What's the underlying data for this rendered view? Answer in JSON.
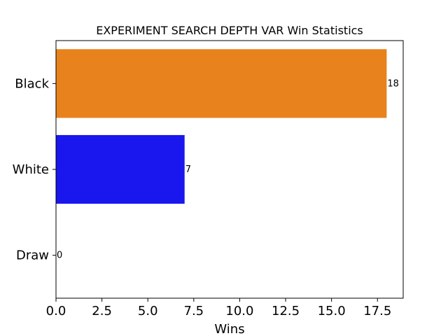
{
  "chart_data": {
    "type": "bar",
    "orientation": "horizontal",
    "title": "EXPERIMENT SEARCH DEPTH VAR Win Statistics",
    "xlabel": "Wins",
    "ylabel": "",
    "categories": [
      "Black",
      "White",
      "Draw"
    ],
    "values": [
      18,
      7,
      0
    ],
    "data_labels": [
      "18",
      "7",
      "0"
    ],
    "colors": [
      "#e8821c",
      "#1a16ee",
      "#ffffff"
    ],
    "xlim": [
      0,
      18.9
    ],
    "xticks": [
      0,
      2.5,
      5,
      7.5,
      10,
      12.5,
      15,
      17.5
    ],
    "xtick_labels": [
      "0.0",
      "2.5",
      "5.0",
      "7.5",
      "10.0",
      "12.5",
      "15.0",
      "17.5"
    ],
    "grid": false,
    "legend": "none"
  }
}
